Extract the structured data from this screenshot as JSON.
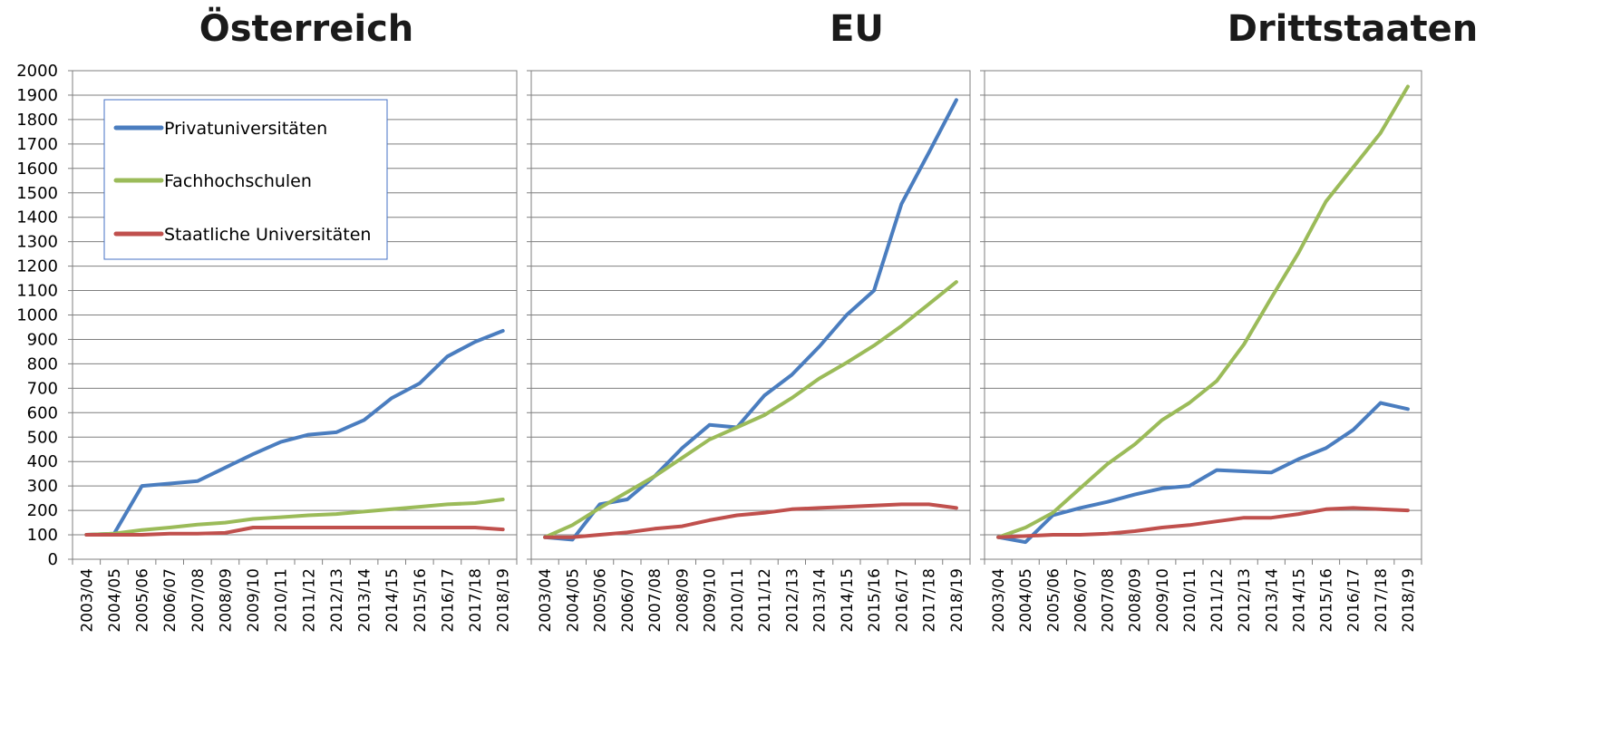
{
  "chart_data": {
    "type": "line",
    "ylim": [
      0,
      2000
    ],
    "yticks": [
      0,
      100,
      200,
      300,
      400,
      500,
      600,
      700,
      800,
      900,
      1000,
      1100,
      1200,
      1300,
      1400,
      1500,
      1600,
      1700,
      1800,
      1900,
      2000
    ],
    "grid": true,
    "legend_position": "top-left of first panel",
    "categories": [
      "2003/04",
      "2004/05",
      "2005/06",
      "2006/07",
      "2007/08",
      "2008/09",
      "2009/10",
      "2010/11",
      "2011/12",
      "2012/13",
      "2013/14",
      "2014/15",
      "2015/16",
      "2016/17",
      "2017/18",
      "2018/19"
    ],
    "legend": [
      {
        "label": "Privatuniversitäten",
        "color": "#4a7dbf"
      },
      {
        "label": "Fachhochschulen",
        "color": "#9bbb59"
      },
      {
        "label": "Staatliche Universitäten",
        "color": "#c0504d"
      }
    ],
    "panels": [
      {
        "title": "Österreich",
        "series": [
          {
            "name": "Privatuniversitäten",
            "color": "#4a7dbf",
            "values": [
              100,
              105,
              300,
              310,
              320,
              375,
              430,
              480,
              510,
              520,
              570,
              660,
              720,
              830,
              890,
              935
            ]
          },
          {
            "name": "Fachhochschulen",
            "color": "#9bbb59",
            "values": [
              100,
              105,
              120,
              130,
              142,
              150,
              165,
              172,
              180,
              185,
              195,
              205,
              215,
              225,
              230,
              245
            ]
          },
          {
            "name": "Staatliche Universitäten",
            "color": "#c0504d",
            "values": [
              100,
              100,
              100,
              105,
              105,
              108,
              130,
              130,
              130,
              130,
              130,
              130,
              130,
              130,
              130,
              122
            ]
          }
        ]
      },
      {
        "title": "EU",
        "series": [
          {
            "name": "Privatuniversitäten",
            "color": "#4a7dbf",
            "values": [
              90,
              80,
              225,
              245,
              340,
              455,
              550,
              540,
              670,
              755,
              870,
              1000,
              1100,
              1455,
              1665,
              1880
            ]
          },
          {
            "name": "Fachhochschulen",
            "color": "#9bbb59",
            "values": [
              90,
              140,
              210,
              275,
              340,
              415,
              490,
              540,
              590,
              660,
              740,
              805,
              875,
              955,
              1045,
              1135
            ]
          },
          {
            "name": "Staatliche Universitäten",
            "color": "#c0504d",
            "values": [
              90,
              90,
              100,
              110,
              125,
              135,
              160,
              180,
              190,
              205,
              210,
              215,
              220,
              225,
              225,
              210
            ]
          }
        ]
      },
      {
        "title": "Drittstaaten",
        "series": [
          {
            "name": "Privatuniversitäten",
            "color": "#4a7dbf",
            "values": [
              90,
              70,
              180,
              210,
              235,
              265,
              290,
              300,
              365,
              360,
              355,
              410,
              455,
              530,
              640,
              615
            ]
          },
          {
            "name": "Fachhochschulen",
            "color": "#9bbb59",
            "values": [
              90,
              130,
              190,
              290,
              390,
              470,
              570,
              640,
              730,
              880,
              1070,
              1255,
              1465,
              1605,
              1745,
              1935
            ]
          },
          {
            "name": "Staatliche Universitäten",
            "color": "#c0504d",
            "values": [
              90,
              95,
              100,
              100,
              105,
              115,
              130,
              140,
              155,
              170,
              170,
              185,
              205,
              210,
              205,
              200
            ]
          }
        ]
      }
    ]
  }
}
